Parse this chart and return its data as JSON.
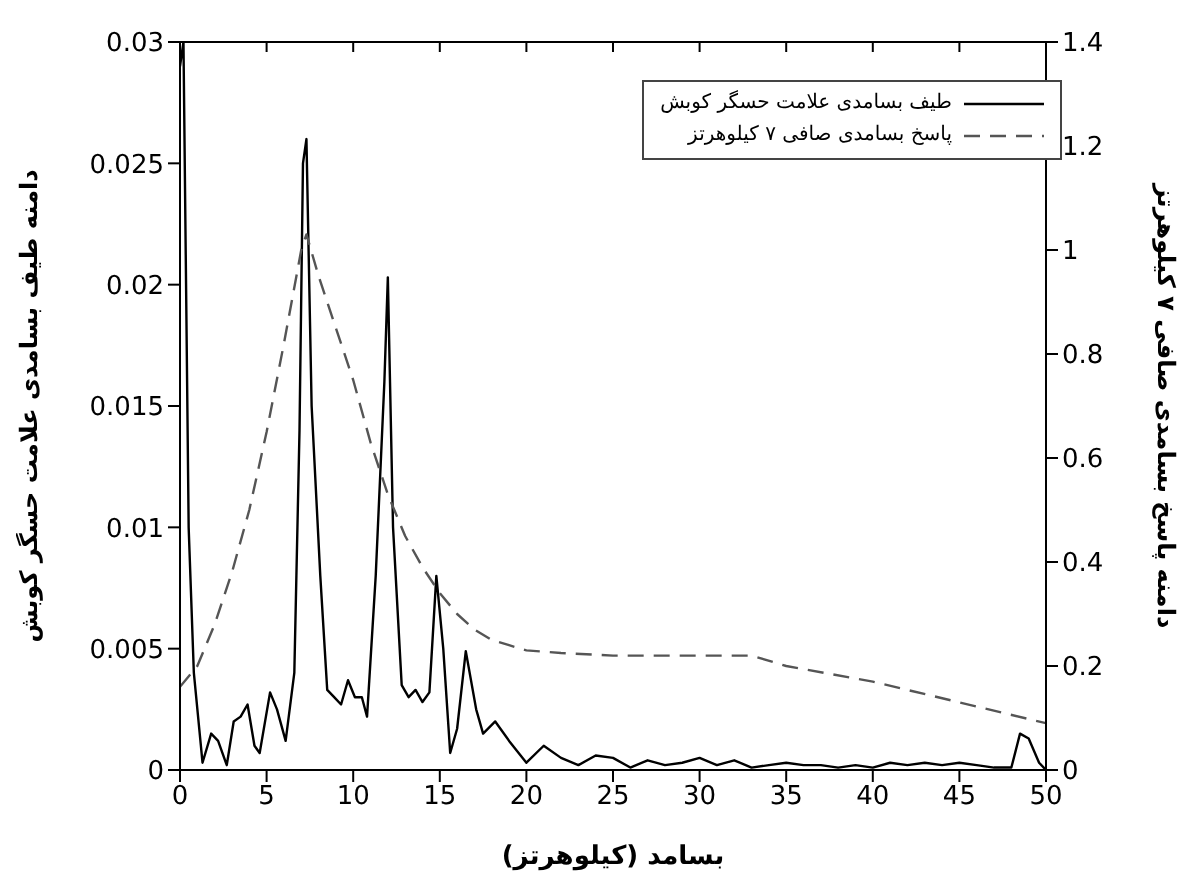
{
  "chart_data": {
    "type": "line",
    "xlabel": "بسامد (کیلوهرتز)",
    "ylabel": "دامنه طیف بسامدی علامت حسگر کوبش",
    "y2label": "دامنه پاسخ بسامدی صافی ۷ کیلوهرتز",
    "xlim": [
      0,
      50
    ],
    "xticks": [
      0,
      5,
      10,
      15,
      20,
      25,
      30,
      35,
      40,
      45,
      50
    ],
    "ylim": [
      0,
      0.03
    ],
    "yticks": [
      0,
      0.005,
      0.01,
      0.015,
      0.02,
      0.025,
      0.03
    ],
    "y2lim": [
      0,
      1.4
    ],
    "y2ticks": [
      0,
      0.2,
      0.4,
      0.6,
      0.8,
      1,
      1.2,
      1.4
    ],
    "legend": "top right",
    "marker": "none",
    "series": [
      {
        "name": "طیف بسامدی علامت حسگر کوبش",
        "color": "#000000",
        "line_style": "solid",
        "x": [
          0,
          0.2,
          0.5,
          0.8,
          1.3,
          1.8,
          2.2,
          2.7,
          3.1,
          3.5,
          3.9,
          4.3,
          4.6,
          5.2,
          5.6,
          6.1,
          6.6,
          6.9,
          7.1,
          7.3,
          7.6,
          8.1,
          8.5,
          8.9,
          9.3,
          9.7,
          10.1,
          10.5,
          10.8,
          11.3,
          11.8,
          12,
          12.3,
          12.8,
          13.2,
          13.6,
          14,
          14.4,
          14.8,
          15.2,
          15.6,
          16,
          16.5,
          17.1,
          17.5,
          18.2,
          19,
          20,
          21,
          22,
          23,
          24,
          25,
          26,
          27,
          28,
          29,
          30,
          31,
          32,
          33,
          34,
          35,
          36,
          37,
          38,
          39,
          40,
          41,
          42,
          43,
          44,
          45,
          46,
          47,
          48,
          48.5,
          49,
          49.6,
          50
        ],
        "values": [
          0.029,
          0.03,
          0.01,
          0.004,
          0.0003,
          0.0015,
          0.0012,
          0.0002,
          0.002,
          0.0022,
          0.0027,
          0.001,
          0.0007,
          0.0032,
          0.0025,
          0.0012,
          0.004,
          0.014,
          0.025,
          0.026,
          0.015,
          0.008,
          0.0033,
          0.003,
          0.0027,
          0.0037,
          0.003,
          0.003,
          0.0022,
          0.008,
          0.016,
          0.0203,
          0.01,
          0.0035,
          0.003,
          0.0033,
          0.0028,
          0.0032,
          0.008,
          0.005,
          0.0007,
          0.0017,
          0.0049,
          0.0025,
          0.0015,
          0.002,
          0.0012,
          0.0003,
          0.001,
          0.0005,
          0.0002,
          0.0006,
          0.0005,
          0.0001,
          0.0004,
          0.0002,
          0.0003,
          0.0005,
          0.0002,
          0.0004,
          0.0001,
          0.0002,
          0.0003,
          0.0002,
          0.0002,
          0.0001,
          0.0002,
          0.0001,
          0.0003,
          0.0002,
          0.0003,
          0.0002,
          0.0003,
          0.0002,
          0.0001,
          0.0001,
          0.0015,
          0.0013,
          0.0003,
          0
        ]
      },
      {
        "name": "پاسخ بسامدی صافی ۷ کیلوهرتز",
        "color": "#555555",
        "line_style": "dashed",
        "axis": "y2",
        "x": [
          0,
          1,
          2,
          3,
          4,
          5,
          6,
          7,
          7.3,
          8,
          9,
          10,
          11,
          12,
          13,
          14,
          15,
          16,
          17,
          18,
          19,
          20,
          22,
          25,
          30,
          33,
          35,
          40,
          45,
          50
        ],
        "values": [
          0.16,
          0.2,
          0.28,
          0.38,
          0.5,
          0.65,
          0.82,
          1.0,
          1.03,
          0.95,
          0.85,
          0.75,
          0.63,
          0.53,
          0.45,
          0.39,
          0.34,
          0.3,
          0.27,
          0.25,
          0.24,
          0.23,
          0.225,
          0.22,
          0.22,
          0.22,
          0.2,
          0.17,
          0.13,
          0.09
        ]
      }
    ]
  }
}
